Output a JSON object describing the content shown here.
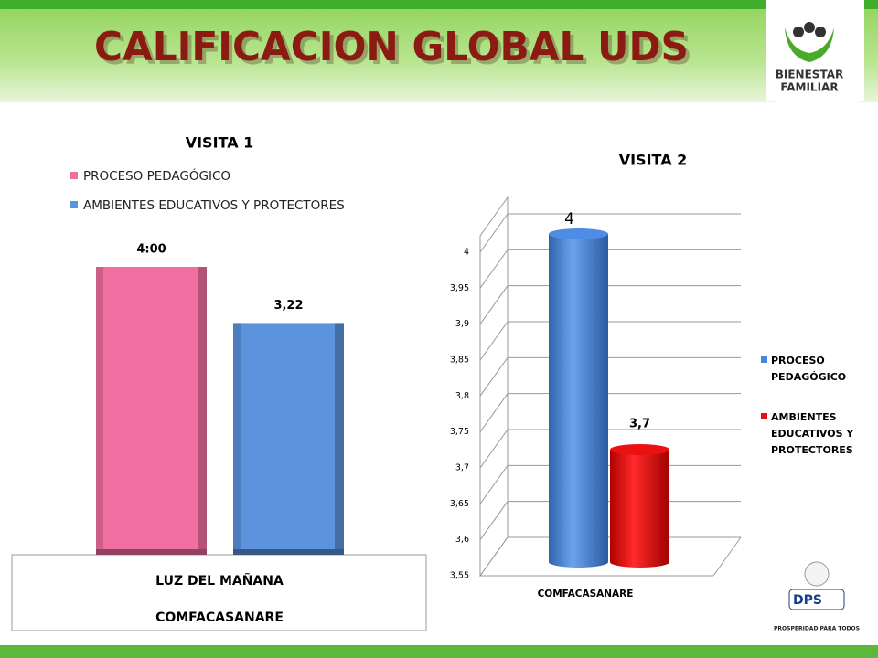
{
  "header": {
    "title": "CALIFICACION GLOBAL UDS",
    "logo_top": "BIENESTAR",
    "logo_bottom": "FAMILIAR",
    "badge": "DPS",
    "slogan": "PROSPERIDAD PARA TODOS"
  },
  "chart_data": [
    {
      "type": "bar",
      "shape": "box",
      "title": "VISITA 1",
      "categories": [
        "LUZ DEL MAÑANA"
      ],
      "category_group": "COMFACASANARE",
      "series": [
        {
          "name": "PROCESO PEDAGÓGICO",
          "color": "#f06fa0",
          "values": [
            4
          ],
          "value_labels": [
            "4:00"
          ]
        },
        {
          "name": "AMBIENTES EDUCATIVOS Y PROTECTORES",
          "color": "#5b93dd",
          "values": [
            3.22
          ],
          "value_labels": [
            "3,22"
          ]
        }
      ],
      "legend": "top-left"
    },
    {
      "type": "bar",
      "shape": "cylinder",
      "title": "VISITA 2",
      "categories": [
        "COMFACASANARE"
      ],
      "series": [
        {
          "name": "PROCESO PEDAGÓGICO",
          "color": "#4a86d8",
          "values": [
            4
          ]
        },
        {
          "name": "AMBIENTES EDUCATIVOS Y PROTECTORES",
          "color": "#e01010",
          "values": [
            3.7
          ],
          "value_labels": [
            "3,7"
          ]
        }
      ],
      "ylim": [
        3.55,
        4
      ],
      "yticks": [
        {
          "value": 3.55,
          "label": "3,55"
        },
        {
          "value": 3.6,
          "label": "3,6"
        },
        {
          "value": 3.65,
          "label": "3,65"
        },
        {
          "value": 3.7,
          "label": "3,7"
        },
        {
          "value": 3.75,
          "label": "3,75"
        },
        {
          "value": 3.8,
          "label": "3,8"
        },
        {
          "value": 3.85,
          "label": "3,85"
        },
        {
          "value": 3.9,
          "label": "3,9"
        },
        {
          "value": 3.95,
          "label": "3,95"
        },
        4
      ],
      "grid": true,
      "legend": "right"
    }
  ]
}
